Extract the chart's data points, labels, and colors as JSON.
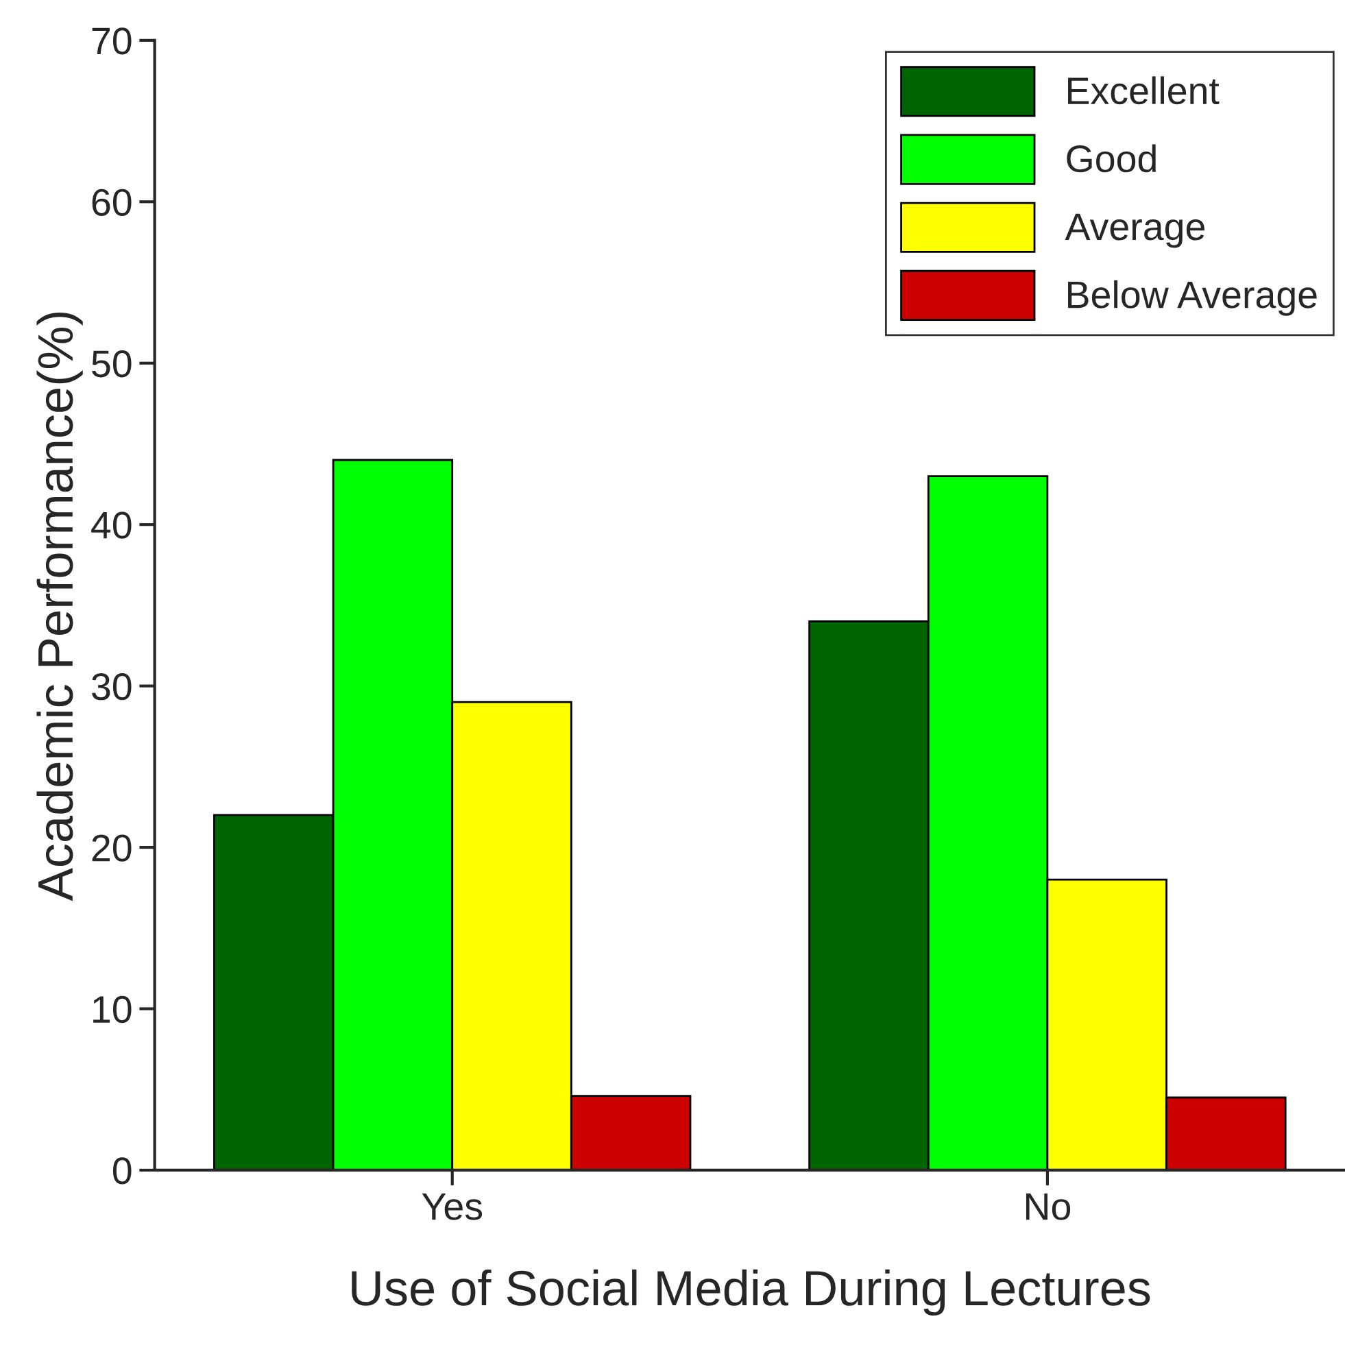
{
  "chart_data": {
    "type": "bar",
    "xlabel": "Use of Social Media During Lectures",
    "ylabel": "Academic Performance(%)",
    "categories": [
      "Yes",
      "No"
    ],
    "series": [
      {
        "name": "Excellent",
        "color": "#006400",
        "values": [
          22,
          34
        ]
      },
      {
        "name": "Good",
        "color": "#00ff00",
        "values": [
          44,
          43
        ]
      },
      {
        "name": "Average",
        "color": "#ffff00",
        "values": [
          29,
          18
        ]
      },
      {
        "name": "Below Average",
        "color": "#cc0000",
        "values": [
          4.6,
          4.5
        ]
      }
    ],
    "ylim": [
      0,
      70
    ],
    "yticks": [
      0,
      10,
      20,
      30,
      40,
      50,
      60,
      70
    ],
    "grid": false,
    "legend": "top right"
  }
}
